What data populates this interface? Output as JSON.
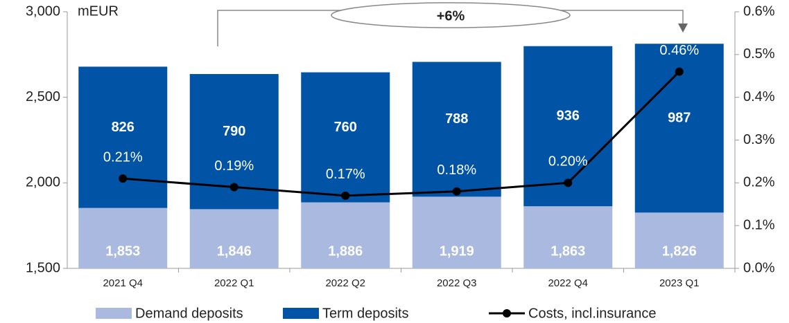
{
  "chart_data": {
    "type": "bar",
    "annotations": {
      "unit": "mEUR",
      "growth": "+6%"
    },
    "categories": [
      "2021 Q4",
      "2022 Q1",
      "2022 Q2",
      "2022 Q3",
      "2022 Q4",
      "2023 Q1"
    ],
    "series": [
      {
        "name": "Demand deposits",
        "color": "#a9b9e0",
        "values": [
          1853,
          1846,
          1886,
          1919,
          1863,
          1826
        ],
        "value_labels": [
          "1,853",
          "1,846",
          "1,886",
          "1,919",
          "1,863",
          "1,826"
        ]
      },
      {
        "name": "Term deposits",
        "color": "#0053a5",
        "values": [
          826,
          790,
          760,
          788,
          936,
          987
        ]
      },
      {
        "name": "Costs, incl.insurance",
        "type": "line",
        "axis": "y2",
        "color": "#000000",
        "values": [
          0.21,
          0.19,
          0.17,
          0.18,
          0.2,
          0.46
        ],
        "value_labels": [
          "0.21%",
          "0.19%",
          "0.17%",
          "0.18%",
          "0.20%",
          "0.46%"
        ]
      }
    ],
    "stacked": true,
    "ylim": [
      1500,
      3000
    ],
    "yticks": [
      {
        "value": 1500,
        "label": "1,500"
      },
      {
        "value": 2000,
        "label": "2,000"
      },
      {
        "value": 2500,
        "label": "2,500"
      },
      {
        "value": 3000,
        "label": "3,000"
      }
    ],
    "y2lim": [
      0,
      0.6
    ],
    "y2ticks": [
      {
        "value": 0,
        "label": "0.0%"
      },
      {
        "value": 0.1,
        "label": "0.1%"
      },
      {
        "value": 0.2,
        "label": "0.2%"
      },
      {
        "value": 0.3,
        "label": "0.3%"
      },
      {
        "value": 0.4,
        "label": "0.4%"
      },
      {
        "value": 0.5,
        "label": "0.5%"
      },
      {
        "value": 0.6,
        "label": "0.6%"
      }
    ],
    "grid": false,
    "legend": "bottom"
  }
}
